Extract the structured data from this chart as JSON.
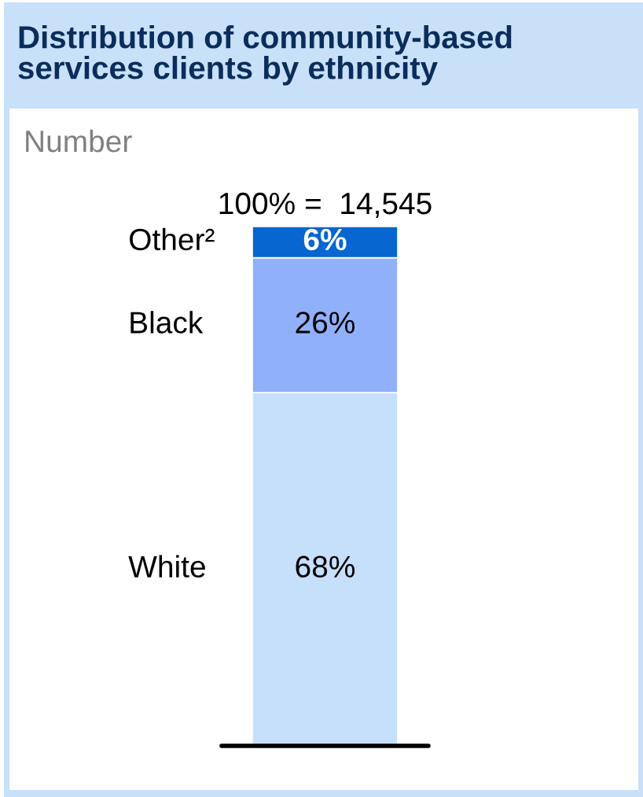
{
  "chart_data": {
    "type": "bar",
    "title": "Distribution of community-based services clients by ethnicity",
    "subtitle": "Number",
    "categories": [
      null
    ],
    "stacked": true,
    "series": [
      {
        "name": "White",
        "color": "#c6dffa",
        "values": [
          68
        ],
        "value_labels": [
          "68%"
        ]
      },
      {
        "name": "Black",
        "color": "#91b0fc",
        "values": [
          26
        ],
        "value_labels": [
          "26%"
        ]
      },
      {
        "name": "Other²",
        "color": "#0766cf",
        "values": [
          6
        ],
        "value_labels": [
          "6%"
        ]
      }
    ],
    "annotations": [
      "100% =  14,545"
    ]
  }
}
